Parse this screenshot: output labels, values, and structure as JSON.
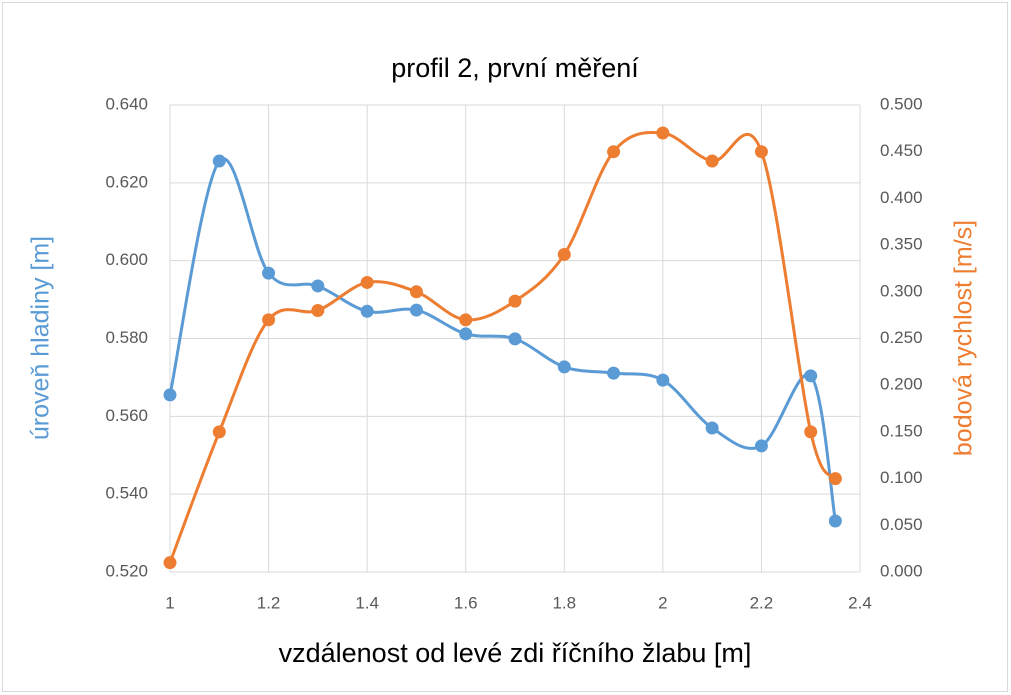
{
  "chart_data": {
    "type": "line",
    "title": "profil 2, první měření",
    "x_label": "vzdálenost od levé zdi říčního žlabu [m]",
    "y_label": "úroveň hladiny [m]",
    "y2_label": "bodová rychlost [m/s]",
    "x": [
      1,
      1.1,
      1.2,
      1.3,
      1.4,
      1.5,
      1.6,
      1.7,
      1.8,
      1.9,
      2.0,
      2.1,
      2.2,
      2.3,
      2.35
    ],
    "series": [
      {
        "name": "úroveň hladiny [m]",
        "color": "#5b9bd5",
        "axis": "y",
        "values": [
          0.5655,
          0.6256,
          0.5968,
          0.5935,
          0.587,
          0.5873,
          0.5812,
          0.5799,
          0.5727,
          0.5711,
          0.5693,
          0.557,
          0.5524,
          0.5704,
          0.5331
        ]
      },
      {
        "name": "bodová rychlost [m/s]",
        "color": "#ed7d31",
        "axis": "y2",
        "values": [
          0.01,
          0.15,
          0.27,
          0.28,
          0.31,
          0.3,
          0.27,
          0.29,
          0.34,
          0.45,
          0.47,
          0.44,
          0.45,
          0.15,
          0.1
        ]
      }
    ],
    "xlim": [
      1,
      2.4
    ],
    "xticks": [
      1,
      1.2,
      1.4,
      1.6,
      1.8,
      2,
      2.2,
      2.4
    ],
    "ylim": [
      0.52,
      0.64
    ],
    "yticks": [
      {
        "value": 0.52,
        "label": "0.520"
      },
      {
        "value": 0.54,
        "label": "0.540"
      },
      {
        "value": 0.56,
        "label": "0.560"
      },
      {
        "value": 0.58,
        "label": "0.580"
      },
      {
        "value": 0.6,
        "label": "0.600"
      },
      {
        "value": 0.62,
        "label": "0.620"
      },
      {
        "value": 0.64,
        "label": "0.640"
      }
    ],
    "y2lim": [
      0,
      0.5
    ],
    "y2ticks": [
      {
        "value": 0,
        "label": "0.000"
      },
      {
        "value": 0.05,
        "label": "0.050"
      },
      {
        "value": 0.1,
        "label": "0.100"
      },
      {
        "value": 0.15,
        "label": "0.150"
      },
      {
        "value": 0.2,
        "label": "0.200"
      },
      {
        "value": 0.25,
        "label": "0.250"
      },
      {
        "value": 0.3,
        "label": "0.300"
      },
      {
        "value": 0.35,
        "label": "0.350"
      },
      {
        "value": 0.4,
        "label": "0.400"
      },
      {
        "value": 0.45,
        "label": "0.450"
      },
      {
        "value": 0.5,
        "label": "0.500"
      }
    ],
    "grid": true,
    "smooth": true
  }
}
